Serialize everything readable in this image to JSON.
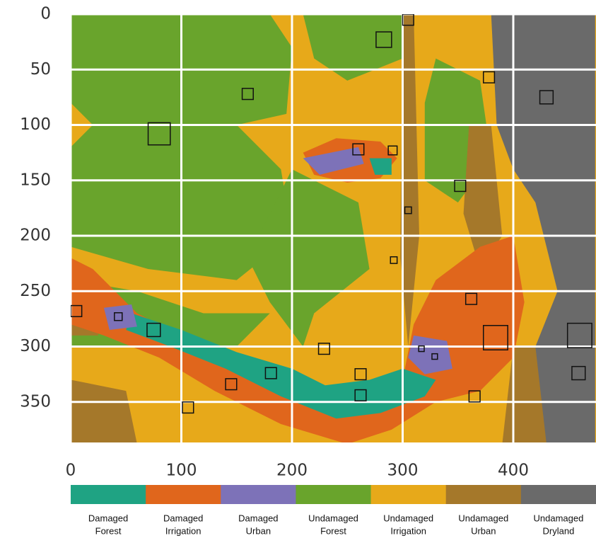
{
  "chart_data": {
    "type": "map",
    "xlim": [
      0,
      474
    ],
    "ylim": [
      388,
      0
    ],
    "xticks": [
      0,
      100,
      200,
      300,
      400
    ],
    "yticks": [
      0,
      50,
      100,
      150,
      200,
      250,
      300,
      350
    ],
    "grid": true,
    "grid_color": "#ffffff",
    "legend": [
      {
        "label": [
          "Damaged",
          "Forest"
        ],
        "color": "#1fa383"
      },
      {
        "label": [
          "Damaged",
          "Irrigation"
        ],
        "color": "#e0661c"
      },
      {
        "label": [
          "Damaged",
          "Urban"
        ],
        "color": "#7d72b8"
      },
      {
        "label": [
          "Undamaged",
          "Forest"
        ],
        "color": "#69a42c"
      },
      {
        "label": [
          "Undamaged",
          "Irrigation"
        ],
        "color": "#e7a91a"
      },
      {
        "label": [
          "Undamaged",
          "Urban"
        ],
        "color": "#a5782a"
      },
      {
        "label": [
          "Undamaged",
          "Dryland"
        ],
        "color": "#6a6a6a"
      }
    ],
    "box_color": "#111111",
    "boxes": [
      {
        "x": 305,
        "y": 5,
        "size": 10
      },
      {
        "x": 283,
        "y": 23,
        "size": 14
      },
      {
        "x": 160,
        "y": 72,
        "size": 10
      },
      {
        "x": 80,
        "y": 108,
        "size": 20
      },
      {
        "x": 378,
        "y": 57,
        "size": 10
      },
      {
        "x": 430,
        "y": 75,
        "size": 12
      },
      {
        "x": 260,
        "y": 122,
        "size": 10
      },
      {
        "x": 291,
        "y": 123,
        "size": 8
      },
      {
        "x": 352,
        "y": 155,
        "size": 10
      },
      {
        "x": 305,
        "y": 177,
        "size": 6
      },
      {
        "x": 292,
        "y": 222,
        "size": 6
      },
      {
        "x": 362,
        "y": 257,
        "size": 10
      },
      {
        "x": 5,
        "y": 268,
        "size": 10
      },
      {
        "x": 43,
        "y": 273,
        "size": 7
      },
      {
        "x": 75,
        "y": 285,
        "size": 12
      },
      {
        "x": 384,
        "y": 292,
        "size": 22
      },
      {
        "x": 460,
        "y": 290,
        "size": 22
      },
      {
        "x": 229,
        "y": 302,
        "size": 10
      },
      {
        "x": 317,
        "y": 302,
        "size": 5
      },
      {
        "x": 329,
        "y": 309,
        "size": 5
      },
      {
        "x": 181,
        "y": 324,
        "size": 10
      },
      {
        "x": 262,
        "y": 325,
        "size": 10
      },
      {
        "x": 459,
        "y": 324,
        "size": 12
      },
      {
        "x": 145,
        "y": 334,
        "size": 10
      },
      {
        "x": 262,
        "y": 344,
        "size": 10
      },
      {
        "x": 365,
        "y": 345,
        "size": 10
      },
      {
        "x": 106,
        "y": 355,
        "size": 10
      }
    ]
  }
}
